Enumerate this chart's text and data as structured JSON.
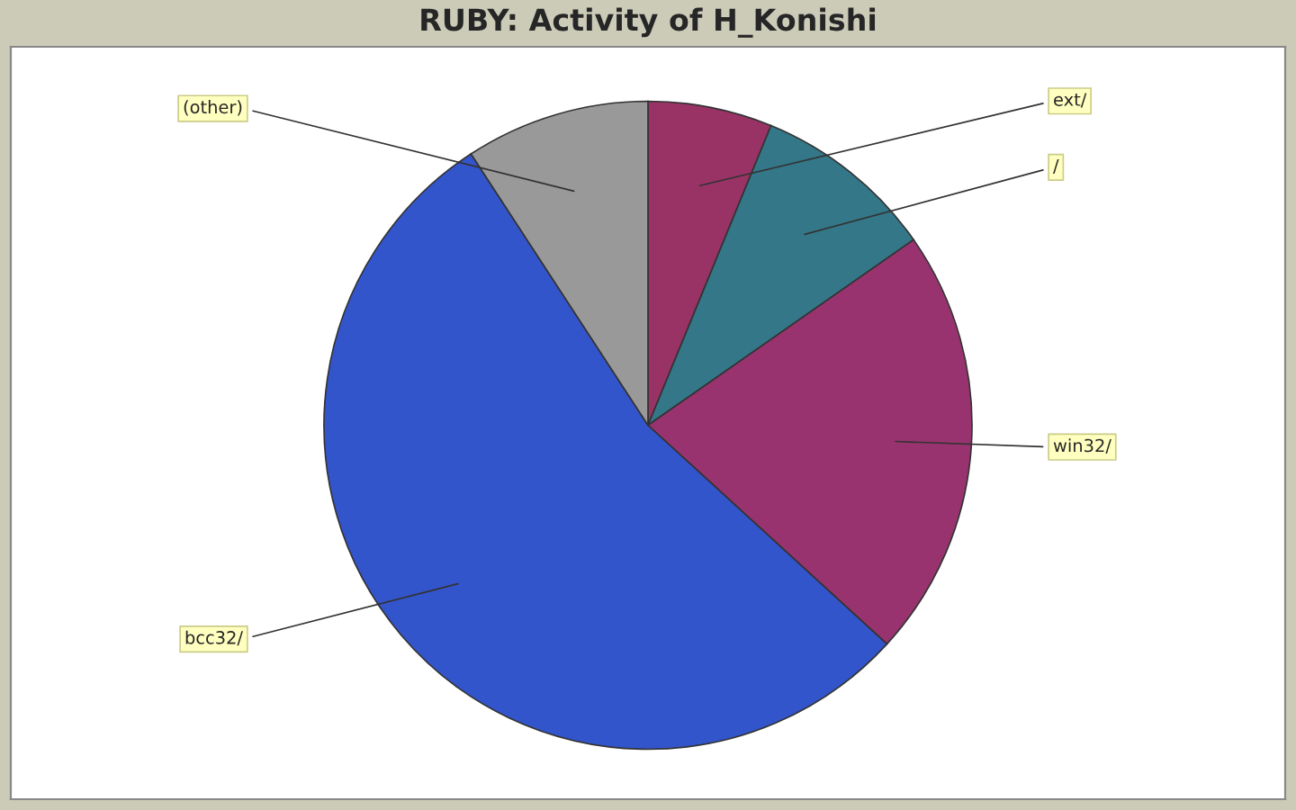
{
  "chart_data": {
    "type": "pie",
    "title": "RUBY: Activity of H_Konishi",
    "categories": [
      "ext/",
      "/",
      "win32/",
      "bcc32/",
      "(other)"
    ],
    "values": [
      6.2,
      9.1,
      21.5,
      54.0,
      9.2
    ],
    "colors": [
      "#993366",
      "#337788",
      "#993370",
      "#3355cc",
      "#999999"
    ],
    "legend": false
  }
}
